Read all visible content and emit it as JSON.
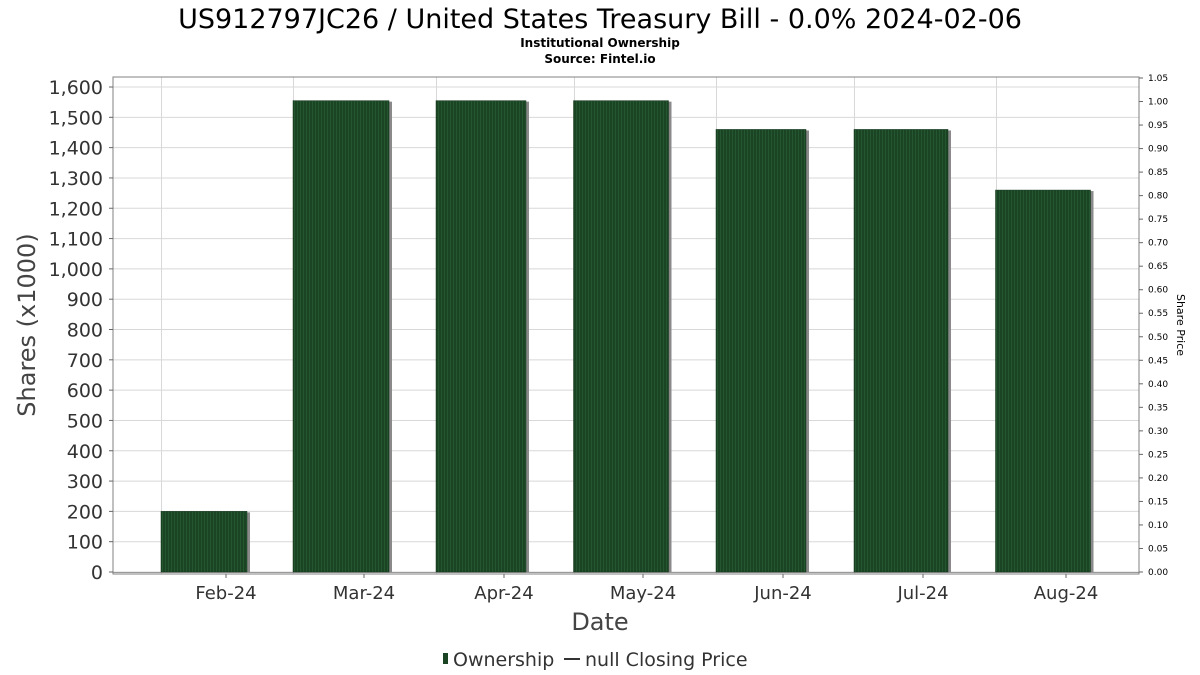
{
  "chart_data": {
    "type": "bar",
    "title": "US912797JC26 / United States Treasury Bill - 0.0% 2024-02-06",
    "subtitle_line1": "Institutional Ownership",
    "subtitle_line2": "Source: Fintel.io",
    "xlabel": "Date",
    "ylabel": "Shares (x1000)",
    "y2label": "Share Price",
    "categories": [
      "Feb-24",
      "Mar-24",
      "Apr-24",
      "May-24",
      "Jun-24",
      "Jul-24",
      "Aug-24"
    ],
    "series": [
      {
        "name": "Ownership",
        "values": [
          200,
          1555,
          1555,
          1555,
          1460,
          1460,
          1260
        ]
      }
    ],
    "ylim": [
      0,
      1630
    ],
    "yticks": [
      0,
      100,
      200,
      300,
      400,
      500,
      600,
      700,
      800,
      900,
      1000,
      1100,
      1200,
      1300,
      1400,
      1500,
      1600
    ],
    "ytick_labels": [
      "0",
      "100",
      "200",
      "300",
      "400",
      "500",
      "600",
      "700",
      "800",
      "900",
      "1,000",
      "1,100",
      "1,200",
      "1,300",
      "1,400",
      "1,500",
      "1,600"
    ],
    "y2lim": [
      0,
      1.05
    ],
    "y2ticks": [
      "0.00",
      "0.05",
      "0.10",
      "0.15",
      "0.20",
      "0.25",
      "0.30",
      "0.35",
      "0.40",
      "0.45",
      "0.50",
      "0.55",
      "0.60",
      "0.65",
      "0.70",
      "0.75",
      "0.80",
      "0.85",
      "0.90",
      "0.95",
      "1.00",
      "1.05"
    ],
    "grid": true,
    "legend": [
      {
        "label": "Ownership",
        "marker": "bar"
      },
      {
        "label": "null Closing Price",
        "marker": "line"
      }
    ],
    "legend_position": "bottom",
    "colors": {
      "bar": "#1a4424",
      "bar_shadow": "#8a8a8a",
      "grid": "#d8d8d8",
      "frame": "#808080"
    }
  }
}
